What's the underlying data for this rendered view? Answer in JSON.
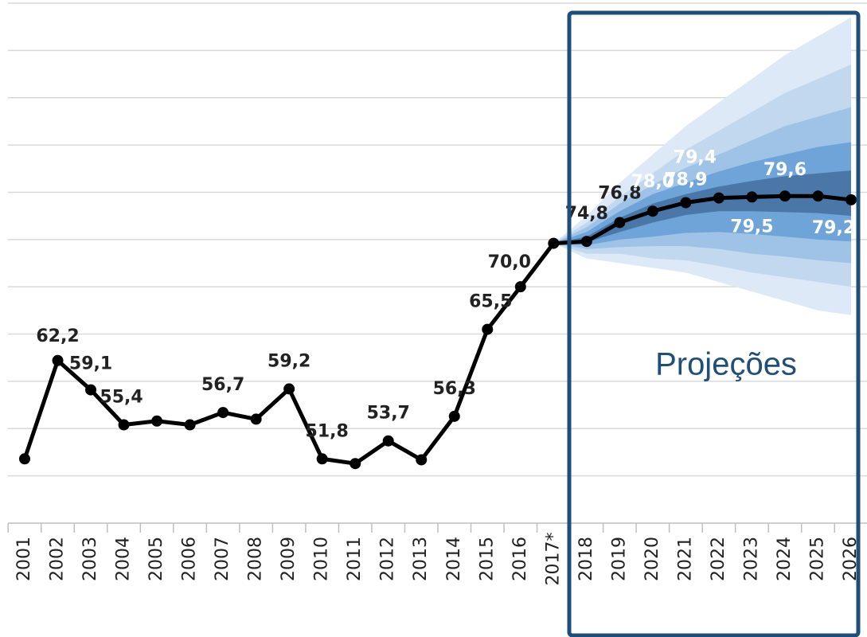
{
  "chart_data": {
    "type": "line",
    "categories": [
      "2001",
      "2002",
      "2003",
      "2004",
      "2005",
      "2006",
      "2007",
      "2008",
      "2009",
      "2010",
      "2011",
      "2012",
      "2013",
      "2014",
      "2015",
      "2016",
      "2017*",
      "2018",
      "2019",
      "2020",
      "2021",
      "2022",
      "2023",
      "2024",
      "2025",
      "2026"
    ],
    "values": [
      51.8,
      62.2,
      59.1,
      55.4,
      55.8,
      55.4,
      56.7,
      56.0,
      59.2,
      51.8,
      51.3,
      53.7,
      51.7,
      56.3,
      65.5,
      70.0,
      74.6,
      74.8,
      76.8,
      78.0,
      78.9,
      79.4,
      79.5,
      79.6,
      79.6,
      79.2
    ],
    "value_labels": [
      null,
      "62,2",
      "59,1",
      "55,4",
      null,
      null,
      "56,7",
      null,
      "59,2",
      "51,8",
      null,
      "53,7",
      null,
      "56,3",
      "65,5",
      "70,0",
      null,
      "74,8",
      "76,8",
      "78,0",
      "78,9",
      "79,4",
      "79,5",
      "79,6",
      null,
      "79,2"
    ],
    "color": "#000000",
    "bands": [
      {
        "color": "#dde9f6",
        "upper": [
          null,
          null,
          null,
          null,
          null,
          null,
          null,
          null,
          null,
          null,
          null,
          null,
          null,
          null,
          null,
          null,
          74.6,
          77.5,
          81,
          84,
          87,
          89.5,
          92,
          94.5,
          96.5,
          98.5
        ],
        "lower": [
          null,
          null,
          null,
          null,
          null,
          null,
          null,
          null,
          null,
          null,
          null,
          null,
          null,
          null,
          null,
          null,
          74.6,
          73,
          72.5,
          72,
          71.5,
          70.5,
          69.5,
          68.5,
          67.5,
          67
        ]
      },
      {
        "color": "#c2d8ef",
        "upper": [
          null,
          null,
          null,
          null,
          null,
          null,
          null,
          null,
          null,
          null,
          null,
          null,
          null,
          null,
          null,
          null,
          74.6,
          76.8,
          79.5,
          82,
          84.5,
          86.5,
          88.5,
          90.5,
          92,
          93.5
        ],
        "lower": [
          null,
          null,
          null,
          null,
          null,
          null,
          null,
          null,
          null,
          null,
          null,
          null,
          null,
          null,
          null,
          null,
          74.6,
          73.5,
          73.5,
          73,
          72.8,
          72.2,
          71.5,
          71,
          70.5,
          70
        ]
      },
      {
        "color": "#9fc3e6",
        "upper": [
          null,
          null,
          null,
          null,
          null,
          null,
          null,
          null,
          null,
          null,
          null,
          null,
          null,
          null,
          null,
          null,
          74.6,
          76.3,
          78.8,
          80.8,
          82.6,
          84,
          85.5,
          87,
          88,
          89
        ],
        "lower": [
          null,
          null,
          null,
          null,
          null,
          null,
          null,
          null,
          null,
          null,
          null,
          null,
          null,
          null,
          null,
          null,
          74.6,
          74,
          74.2,
          74.3,
          74.3,
          74,
          73.5,
          73.2,
          72.8,
          72.5
        ]
      },
      {
        "color": "#6ea4d8",
        "upper": [
          null,
          null,
          null,
          null,
          null,
          null,
          null,
          null,
          null,
          null,
          null,
          null,
          null,
          null,
          null,
          null,
          74.6,
          75.8,
          78,
          79.8,
          81,
          82.2,
          83.2,
          84,
          84.8,
          85.3
        ],
        "lower": [
          null,
          null,
          null,
          null,
          null,
          null,
          null,
          null,
          null,
          null,
          null,
          null,
          null,
          null,
          null,
          null,
          74.6,
          74.4,
          75,
          75.3,
          75.7,
          75.8,
          75.6,
          75.3,
          75,
          74.8
        ]
      },
      {
        "color": "#4a76a8",
        "upper": [
          null,
          null,
          null,
          null,
          null,
          null,
          null,
          null,
          null,
          null,
          null,
          null,
          null,
          null,
          null,
          null,
          74.6,
          75.3,
          77.3,
          78.8,
          79.8,
          80.6,
          81.2,
          81.7,
          82,
          82.3
        ],
        "lower": [
          null,
          null,
          null,
          null,
          null,
          null,
          null,
          null,
          null,
          null,
          null,
          null,
          null,
          null,
          null,
          null,
          74.6,
          74.7,
          75.8,
          76.8,
          77.6,
          78,
          78,
          77.9,
          77.8,
          77.5
        ]
      }
    ],
    "annotation": "Projeções",
    "ylim": [
      45,
      100
    ],
    "yticks": [
      50,
      55,
      60,
      65,
      70,
      75,
      80,
      85,
      90,
      95,
      100
    ],
    "grid": true
  }
}
